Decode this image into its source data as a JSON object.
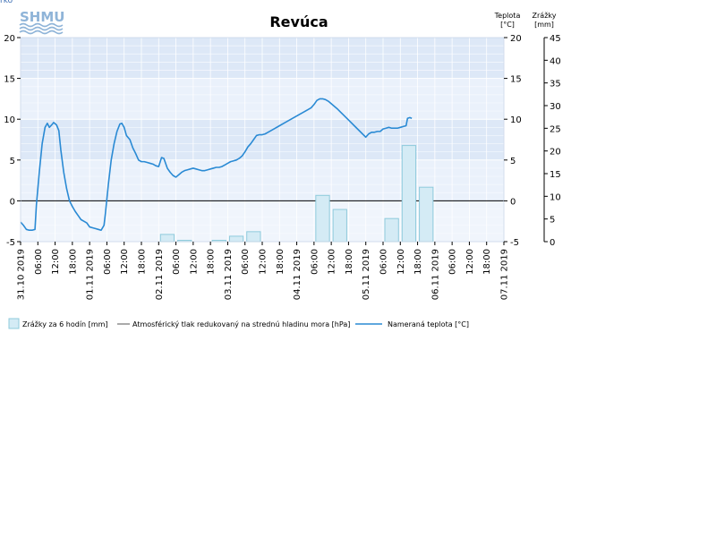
{
  "page": {
    "corner_link": "rko",
    "logo_text": "SHMU"
  },
  "chart_data": {
    "type": "line",
    "title": "Revúca",
    "y_left": {
      "range": [
        -5,
        20
      ],
      "ticks": [
        -5,
        0,
        5,
        10,
        15,
        20
      ]
    },
    "y_right_temp": {
      "title": [
        "Teplota",
        "[°C]"
      ],
      "range": [
        -5,
        20
      ],
      "ticks": [
        -5,
        0,
        5,
        10,
        15,
        20
      ]
    },
    "y_right_precip": {
      "title": [
        "Zrážky",
        "[mm]"
      ],
      "range": [
        0,
        45
      ],
      "ticks": [
        0,
        5,
        10,
        15,
        20,
        25,
        30,
        35,
        40,
        45
      ]
    },
    "x_range_hours": [
      0,
      168
    ],
    "x_ticks": [
      {
        "h": 0,
        "label": "31.10 2019"
      },
      {
        "h": 6,
        "label": "06:00"
      },
      {
        "h": 12,
        "label": "12:00"
      },
      {
        "h": 18,
        "label": "18:00"
      },
      {
        "h": 24,
        "label": "01.11 2019"
      },
      {
        "h": 30,
        "label": "06:00"
      },
      {
        "h": 36,
        "label": "12:00"
      },
      {
        "h": 42,
        "label": "18:00"
      },
      {
        "h": 48,
        "label": "02.11 2019"
      },
      {
        "h": 54,
        "label": "06:00"
      },
      {
        "h": 60,
        "label": "12:00"
      },
      {
        "h": 66,
        "label": "18:00"
      },
      {
        "h": 72,
        "label": "03.11 2019"
      },
      {
        "h": 78,
        "label": "06:00"
      },
      {
        "h": 84,
        "label": "12:00"
      },
      {
        "h": 90,
        "label": "18:00"
      },
      {
        "h": 96,
        "label": "04.11 2019"
      },
      {
        "h": 102,
        "label": "06:00"
      },
      {
        "h": 108,
        "label": "12:00"
      },
      {
        "h": 114,
        "label": "18:00"
      },
      {
        "h": 120,
        "label": "05.11 2019"
      },
      {
        "h": 126,
        "label": "06:00"
      },
      {
        "h": 132,
        "label": "12:00"
      },
      {
        "h": 138,
        "label": "18:00"
      },
      {
        "h": 144,
        "label": "06.11 2019"
      },
      {
        "h": 150,
        "label": "06:00"
      },
      {
        "h": 156,
        "label": "12:00"
      },
      {
        "h": 162,
        "label": "18:00"
      },
      {
        "h": 168,
        "label": "07.11 2019"
      }
    ],
    "series": [
      {
        "name": "Zrážky za 6 hodín [mm]",
        "type": "bar",
        "color": "#d4ebf5",
        "border": "#8fcbdc",
        "bars": [
          {
            "h_start": 48,
            "h_end": 54,
            "value": 1.6
          },
          {
            "h_start": 54,
            "h_end": 60,
            "value": 0.3
          },
          {
            "h_start": 66,
            "h_end": 72,
            "value": 0.3
          },
          {
            "h_start": 72,
            "h_end": 78,
            "value": 1.2
          },
          {
            "h_start": 78,
            "h_end": 84,
            "value": 2.2
          },
          {
            "h_start": 102,
            "h_end": 108,
            "value": 10.2
          },
          {
            "h_start": 108,
            "h_end": 114,
            "value": 7.1
          },
          {
            "h_start": 126,
            "h_end": 132,
            "value": 5.1
          },
          {
            "h_start": 132,
            "h_end": 138,
            "value": 21.2
          },
          {
            "h_start": 138,
            "h_end": 144,
            "value": 12.0
          }
        ]
      },
      {
        "name": "Atmosférický tlak redukovaný na strednú hladinu mora [hPa]",
        "type": "line",
        "color": "#aaaaaa",
        "points": []
      },
      {
        "name": "Nameraná teplota [°C]",
        "type": "line",
        "color": "#2a8ad4",
        "points": [
          [
            0,
            -2.6
          ],
          [
            1,
            -3.0
          ],
          [
            2,
            -3.5
          ],
          [
            3,
            -3.6
          ],
          [
            4,
            -3.6
          ],
          [
            5,
            -3.5
          ],
          [
            5.5,
            -0.5
          ],
          [
            6.5,
            3.5
          ],
          [
            7.5,
            7.0
          ],
          [
            8.5,
            9.0
          ],
          [
            9.3,
            9.5
          ],
          [
            10,
            9.0
          ],
          [
            10.8,
            9.3
          ],
          [
            11.5,
            9.6
          ],
          [
            12.5,
            9.3
          ],
          [
            13.3,
            8.6
          ],
          [
            14,
            6.2
          ],
          [
            15,
            3.5
          ],
          [
            16,
            1.5
          ],
          [
            17,
            0.0
          ],
          [
            18,
            -0.7
          ],
          [
            19,
            -1.3
          ],
          [
            20,
            -1.8
          ],
          [
            21,
            -2.3
          ],
          [
            22,
            -2.5
          ],
          [
            23,
            -2.7
          ],
          [
            24,
            -3.2
          ],
          [
            25,
            -3.3
          ],
          [
            26,
            -3.4
          ],
          [
            27,
            -3.5
          ],
          [
            28,
            -3.6
          ],
          [
            29,
            -3.0
          ],
          [
            29.5,
            -1.5
          ],
          [
            30.5,
            2.0
          ],
          [
            31.5,
            5.0
          ],
          [
            32.5,
            7.0
          ],
          [
            33.5,
            8.5
          ],
          [
            34.5,
            9.4
          ],
          [
            35.2,
            9.5
          ],
          [
            36,
            9.0
          ],
          [
            36.8,
            8.0
          ],
          [
            38,
            7.5
          ],
          [
            39,
            6.5
          ],
          [
            40,
            5.8
          ],
          [
            41,
            5.0
          ],
          [
            42,
            4.8
          ],
          [
            43,
            4.8
          ],
          [
            44,
            4.7
          ],
          [
            45,
            4.6
          ],
          [
            46,
            4.5
          ],
          [
            47,
            4.3
          ],
          [
            48,
            4.2
          ],
          [
            49,
            5.3
          ],
          [
            49.8,
            5.2
          ],
          [
            51,
            4.0
          ],
          [
            52,
            3.5
          ],
          [
            53,
            3.1
          ],
          [
            54,
            2.9
          ],
          [
            55,
            3.2
          ],
          [
            56,
            3.5
          ],
          [
            57,
            3.7
          ],
          [
            58,
            3.8
          ],
          [
            59,
            3.9
          ],
          [
            60,
            4.0
          ],
          [
            61,
            3.9
          ],
          [
            62,
            3.8
          ],
          [
            63,
            3.7
          ],
          [
            64,
            3.7
          ],
          [
            65,
            3.8
          ],
          [
            66,
            3.9
          ],
          [
            67,
            4.0
          ],
          [
            68,
            4.1
          ],
          [
            69,
            4.1
          ],
          [
            70,
            4.2
          ],
          [
            71,
            4.4
          ],
          [
            72,
            4.6
          ],
          [
            73,
            4.8
          ],
          [
            74,
            4.9
          ],
          [
            75,
            5.0
          ],
          [
            76,
            5.2
          ],
          [
            77,
            5.5
          ],
          [
            78,
            6.0
          ],
          [
            79,
            6.6
          ],
          [
            80,
            7.0
          ],
          [
            81,
            7.5
          ],
          [
            82,
            8.0
          ],
          [
            83,
            8.1
          ],
          [
            84,
            8.1
          ],
          [
            85,
            8.2
          ],
          [
            86,
            8.4
          ],
          [
            88,
            8.8
          ],
          [
            90,
            9.2
          ],
          [
            92,
            9.6
          ],
          [
            94,
            10.0
          ],
          [
            96,
            10.4
          ],
          [
            98,
            10.8
          ],
          [
            100,
            11.2
          ],
          [
            101,
            11.4
          ],
          [
            102,
            11.8
          ],
          [
            103,
            12.3
          ],
          [
            104,
            12.5
          ],
          [
            105,
            12.5
          ],
          [
            106,
            12.4
          ],
          [
            107,
            12.2
          ],
          [
            108,
            11.9
          ],
          [
            110,
            11.3
          ],
          [
            112,
            10.6
          ],
          [
            114,
            9.9
          ],
          [
            116,
            9.2
          ],
          [
            118,
            8.5
          ],
          [
            120,
            7.8
          ],
          [
            121,
            8.2
          ],
          [
            122,
            8.4
          ],
          [
            123,
            8.4
          ],
          [
            124,
            8.5
          ],
          [
            125,
            8.5
          ],
          [
            126,
            8.8
          ],
          [
            127,
            8.9
          ],
          [
            128,
            9.0
          ],
          [
            129,
            8.9
          ],
          [
            130,
            8.9
          ],
          [
            131,
            8.9
          ],
          [
            132,
            9.0
          ],
          [
            133,
            9.1
          ],
          [
            134,
            9.2
          ],
          [
            134.5,
            10.1
          ],
          [
            135.3,
            10.2
          ],
          [
            136,
            10.1
          ]
        ]
      }
    ],
    "legend_position": "bottom-left",
    "grid": true
  }
}
